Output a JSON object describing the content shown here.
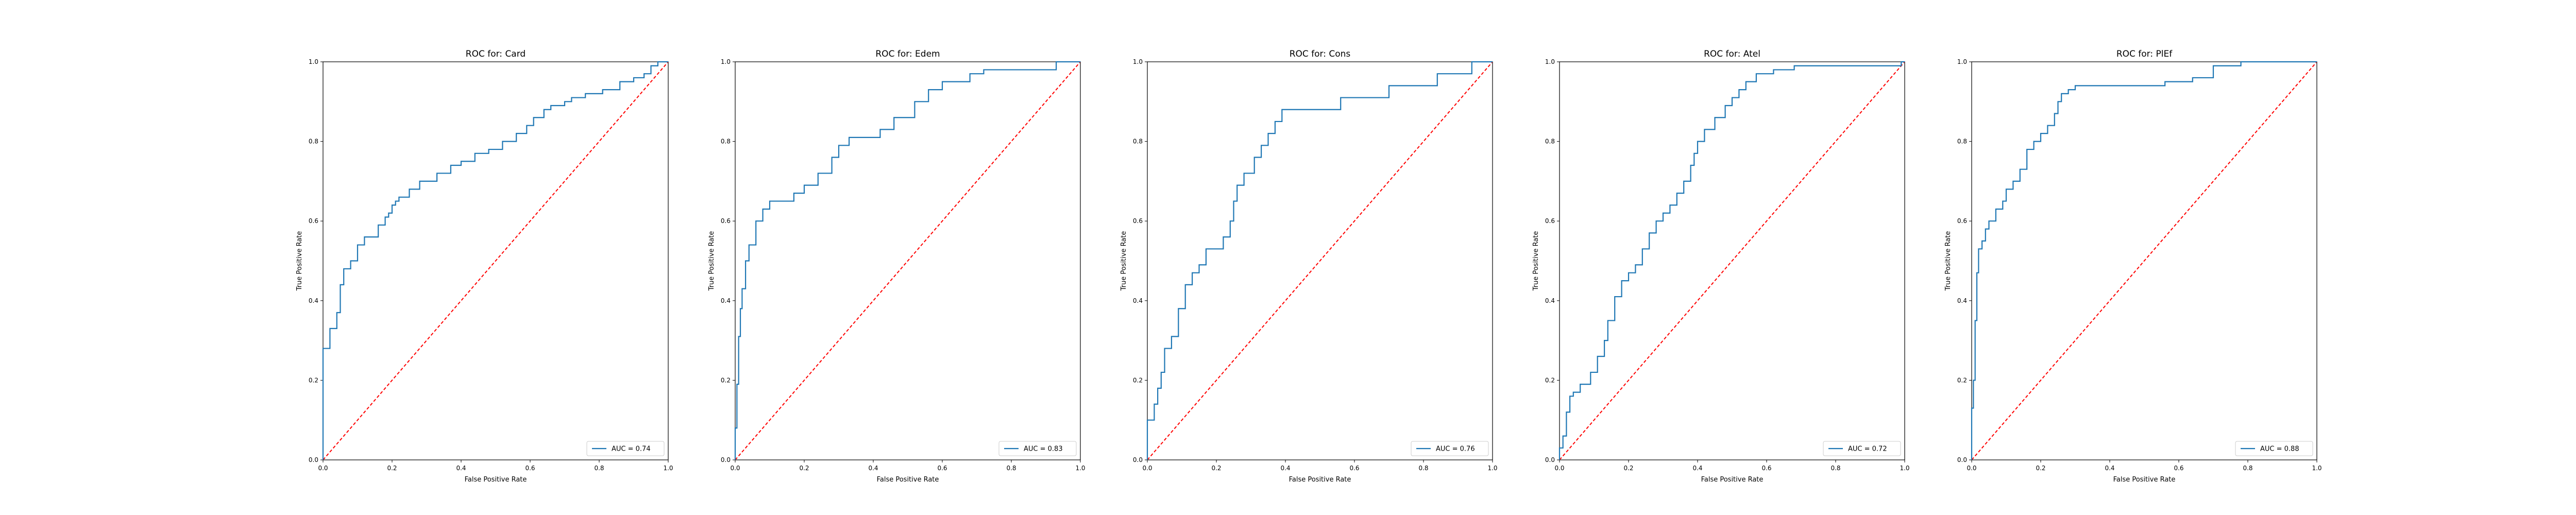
{
  "colors": {
    "roc": "#1f77b4",
    "chance": "#ff0000",
    "frame": "#000000"
  },
  "chart_data": [
    {
      "type": "line",
      "title": "ROC for: Card",
      "xlabel": "False Positive Rate",
      "ylabel": "True Positive Rate",
      "xlim": [
        0,
        1
      ],
      "ylim": [
        0,
        1
      ],
      "xticks": [
        "0.0",
        "0.2",
        "0.4",
        "0.6",
        "0.8",
        "1.0"
      ],
      "yticks": [
        "0.0",
        "0.2",
        "0.4",
        "0.6",
        "0.8",
        "1.0"
      ],
      "grid": false,
      "legend_position": "lower-right",
      "legend_label": "AUC = 0.74",
      "series": [
        {
          "x": [
            0,
            0,
            0.02,
            0.02,
            0.04,
            0.04,
            0.05,
            0.05,
            0.06,
            0.06,
            0.08,
            0.08,
            0.1,
            0.1,
            0.12,
            0.12,
            0.16,
            0.16,
            0.18,
            0.18,
            0.19,
            0.19,
            0.2,
            0.2,
            0.21,
            0.21,
            0.22,
            0.22,
            0.25,
            0.25,
            0.28,
            0.28,
            0.33,
            0.33,
            0.37,
            0.37,
            0.4,
            0.4,
            0.44,
            0.44,
            0.48,
            0.48,
            0.52,
            0.52,
            0.56,
            0.56,
            0.59,
            0.59,
            0.61,
            0.61,
            0.64,
            0.64,
            0.66,
            0.66,
            0.7,
            0.7,
            0.72,
            0.72,
            0.76,
            0.76,
            0.81,
            0.81,
            0.86,
            0.86,
            0.9,
            0.9,
            0.93,
            0.93,
            0.95,
            0.95,
            0.97,
            0.97,
            1
          ],
          "y": [
            0,
            0.28,
            0.28,
            0.33,
            0.33,
            0.37,
            0.37,
            0.44,
            0.44,
            0.48,
            0.48,
            0.5,
            0.5,
            0.54,
            0.54,
            0.56,
            0.56,
            0.59,
            0.59,
            0.61,
            0.61,
            0.62,
            0.62,
            0.64,
            0.64,
            0.65,
            0.65,
            0.66,
            0.66,
            0.68,
            0.68,
            0.7,
            0.7,
            0.72,
            0.72,
            0.74,
            0.74,
            0.75,
            0.75,
            0.77,
            0.77,
            0.78,
            0.78,
            0.8,
            0.8,
            0.82,
            0.82,
            0.84,
            0.84,
            0.86,
            0.86,
            0.88,
            0.88,
            0.89,
            0.89,
            0.9,
            0.9,
            0.91,
            0.91,
            0.92,
            0.92,
            0.93,
            0.93,
            0.95,
            0.95,
            0.96,
            0.96,
            0.97,
            0.97,
            0.99,
            0.99,
            1,
            1
          ]
        },
        {
          "x": [
            0,
            1
          ],
          "y": [
            0,
            1
          ]
        }
      ]
    },
    {
      "type": "line",
      "title": "ROC for: Edem",
      "xlabel": "False Positive Rate",
      "ylabel": "True Positive Rate",
      "xlim": [
        0,
        1
      ],
      "ylim": [
        0,
        1
      ],
      "xticks": [
        "0.0",
        "0.2",
        "0.4",
        "0.6",
        "0.8",
        "1.0"
      ],
      "yticks": [
        "0.0",
        "0.2",
        "0.4",
        "0.6",
        "0.8",
        "1.0"
      ],
      "grid": false,
      "legend_position": "lower-right",
      "legend_label": "AUC = 0.83",
      "series": [
        {
          "x": [
            0,
            0,
            0.005,
            0.005,
            0.01,
            0.01,
            0.015,
            0.015,
            0.02,
            0.02,
            0.03,
            0.03,
            0.04,
            0.04,
            0.06,
            0.06,
            0.08,
            0.08,
            0.1,
            0.1,
            0.17,
            0.17,
            0.2,
            0.2,
            0.24,
            0.24,
            0.28,
            0.28,
            0.3,
            0.3,
            0.33,
            0.33,
            0.42,
            0.42,
            0.46,
            0.46,
            0.52,
            0.52,
            0.56,
            0.56,
            0.6,
            0.6,
            0.68,
            0.68,
            0.72,
            0.72,
            0.93,
            0.93,
            1
          ],
          "y": [
            0,
            0.08,
            0.08,
            0.19,
            0.19,
            0.31,
            0.31,
            0.38,
            0.38,
            0.43,
            0.43,
            0.5,
            0.5,
            0.54,
            0.54,
            0.6,
            0.6,
            0.63,
            0.63,
            0.65,
            0.65,
            0.67,
            0.67,
            0.69,
            0.69,
            0.72,
            0.72,
            0.76,
            0.76,
            0.79,
            0.79,
            0.81,
            0.81,
            0.83,
            0.83,
            0.86,
            0.86,
            0.9,
            0.9,
            0.93,
            0.93,
            0.95,
            0.95,
            0.97,
            0.97,
            0.98,
            0.98,
            1,
            1
          ]
        },
        {
          "x": [
            0,
            1
          ],
          "y": [
            0,
            1
          ]
        }
      ]
    },
    {
      "type": "line",
      "title": "ROC for: Cons",
      "xlabel": "False Positive Rate",
      "ylabel": "True Positive Rate",
      "xlim": [
        0,
        1
      ],
      "ylim": [
        0,
        1
      ],
      "xticks": [
        "0.0",
        "0.2",
        "0.4",
        "0.6",
        "0.8",
        "1.0"
      ],
      "yticks": [
        "0.0",
        "0.2",
        "0.4",
        "0.6",
        "0.8",
        "1.0"
      ],
      "grid": false,
      "legend_position": "lower-right",
      "legend_label": "AUC = 0.76",
      "series": [
        {
          "x": [
            0,
            0,
            0.02,
            0.02,
            0.03,
            0.03,
            0.04,
            0.04,
            0.05,
            0.05,
            0.07,
            0.07,
            0.09,
            0.09,
            0.11,
            0.11,
            0.13,
            0.13,
            0.15,
            0.15,
            0.17,
            0.17,
            0.22,
            0.22,
            0.24,
            0.24,
            0.25,
            0.25,
            0.26,
            0.26,
            0.28,
            0.28,
            0.31,
            0.31,
            0.33,
            0.33,
            0.35,
            0.35,
            0.37,
            0.37,
            0.39,
            0.39,
            0.56,
            0.56,
            0.7,
            0.7,
            0.84,
            0.84,
            0.94,
            0.94,
            1
          ],
          "y": [
            0,
            0.1,
            0.1,
            0.14,
            0.14,
            0.18,
            0.18,
            0.22,
            0.22,
            0.28,
            0.28,
            0.31,
            0.31,
            0.38,
            0.38,
            0.44,
            0.44,
            0.47,
            0.47,
            0.49,
            0.49,
            0.53,
            0.53,
            0.56,
            0.56,
            0.6,
            0.6,
            0.65,
            0.65,
            0.69,
            0.69,
            0.72,
            0.72,
            0.76,
            0.76,
            0.79,
            0.79,
            0.82,
            0.82,
            0.85,
            0.85,
            0.88,
            0.88,
            0.91,
            0.91,
            0.94,
            0.94,
            0.97,
            0.97,
            1,
            1
          ]
        },
        {
          "x": [
            0,
            1
          ],
          "y": [
            0,
            1
          ]
        }
      ]
    },
    {
      "type": "line",
      "title": "ROC for: Atel",
      "xlabel": "False Positive Rate",
      "ylabel": "True Positive Rate",
      "xlim": [
        0,
        1
      ],
      "ylim": [
        0,
        1
      ],
      "xticks": [
        "0.0",
        "0.2",
        "0.4",
        "0.6",
        "0.8",
        "1.0"
      ],
      "yticks": [
        "0.0",
        "0.2",
        "0.4",
        "0.6",
        "0.8",
        "1.0"
      ],
      "grid": false,
      "legend_position": "lower-right",
      "legend_label": "AUC = 0.72",
      "series": [
        {
          "x": [
            0,
            0,
            0.01,
            0.01,
            0.02,
            0.02,
            0.03,
            0.03,
            0.04,
            0.04,
            0.06,
            0.06,
            0.09,
            0.09,
            0.11,
            0.11,
            0.13,
            0.13,
            0.14,
            0.14,
            0.16,
            0.16,
            0.18,
            0.18,
            0.2,
            0.2,
            0.22,
            0.22,
            0.24,
            0.24,
            0.26,
            0.26,
            0.28,
            0.28,
            0.3,
            0.3,
            0.32,
            0.32,
            0.34,
            0.34,
            0.36,
            0.36,
            0.38,
            0.38,
            0.39,
            0.39,
            0.4,
            0.4,
            0.42,
            0.42,
            0.45,
            0.45,
            0.48,
            0.48,
            0.5,
            0.5,
            0.52,
            0.52,
            0.54,
            0.54,
            0.57,
            0.57,
            0.62,
            0.62,
            0.68,
            0.68,
            0.99,
            0.99,
            1
          ],
          "y": [
            0,
            0.03,
            0.03,
            0.06,
            0.06,
            0.12,
            0.12,
            0.16,
            0.16,
            0.17,
            0.17,
            0.19,
            0.19,
            0.22,
            0.22,
            0.26,
            0.26,
            0.3,
            0.3,
            0.35,
            0.35,
            0.41,
            0.41,
            0.45,
            0.45,
            0.47,
            0.47,
            0.49,
            0.49,
            0.53,
            0.53,
            0.57,
            0.57,
            0.6,
            0.6,
            0.62,
            0.62,
            0.64,
            0.64,
            0.67,
            0.67,
            0.7,
            0.7,
            0.74,
            0.74,
            0.77,
            0.77,
            0.8,
            0.8,
            0.83,
            0.83,
            0.86,
            0.86,
            0.89,
            0.89,
            0.91,
            0.91,
            0.93,
            0.93,
            0.95,
            0.95,
            0.97,
            0.97,
            0.98,
            0.98,
            0.99,
            0.99,
            1,
            1
          ]
        },
        {
          "x": [
            0,
            1
          ],
          "y": [
            0,
            1
          ]
        }
      ]
    },
    {
      "type": "line",
      "title": "ROC for: PlEf",
      "xlabel": "False Positive Rate",
      "ylabel": "True Positive Rate",
      "xlim": [
        0,
        1
      ],
      "ylim": [
        0,
        1
      ],
      "xticks": [
        "0.0",
        "0.2",
        "0.4",
        "0.6",
        "0.8",
        "1.0"
      ],
      "yticks": [
        "0.0",
        "0.2",
        "0.4",
        "0.6",
        "0.8",
        "1.0"
      ],
      "grid": false,
      "legend_position": "lower-right",
      "legend_label": "AUC = 0.88",
      "series": [
        {
          "x": [
            0,
            0,
            0.005,
            0.005,
            0.01,
            0.01,
            0.015,
            0.015,
            0.02,
            0.02,
            0.03,
            0.03,
            0.04,
            0.04,
            0.05,
            0.05,
            0.07,
            0.07,
            0.09,
            0.09,
            0.1,
            0.1,
            0.12,
            0.12,
            0.14,
            0.14,
            0.16,
            0.16,
            0.18,
            0.18,
            0.2,
            0.2,
            0.22,
            0.22,
            0.24,
            0.24,
            0.25,
            0.25,
            0.26,
            0.26,
            0.28,
            0.28,
            0.3,
            0.3,
            0.56,
            0.56,
            0.64,
            0.64,
            0.7,
            0.7,
            0.78,
            0.78,
            1
          ],
          "y": [
            0,
            0.13,
            0.13,
            0.2,
            0.2,
            0.35,
            0.35,
            0.47,
            0.47,
            0.53,
            0.53,
            0.55,
            0.55,
            0.58,
            0.58,
            0.6,
            0.6,
            0.63,
            0.63,
            0.65,
            0.65,
            0.68,
            0.68,
            0.7,
            0.7,
            0.73,
            0.73,
            0.78,
            0.78,
            0.8,
            0.8,
            0.82,
            0.82,
            0.84,
            0.84,
            0.87,
            0.87,
            0.9,
            0.9,
            0.92,
            0.92,
            0.93,
            0.93,
            0.94,
            0.94,
            0.95,
            0.95,
            0.96,
            0.96,
            0.99,
            0.99,
            1,
            1
          ]
        },
        {
          "x": [
            0,
            1
          ],
          "y": [
            0,
            1
          ]
        }
      ]
    }
  ]
}
